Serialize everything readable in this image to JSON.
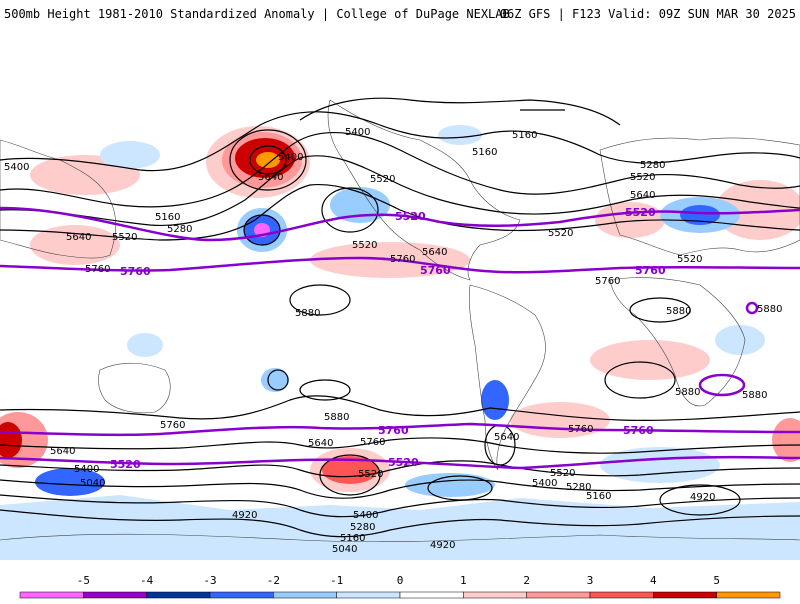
{
  "header": {
    "title": "500mb Height 1981-2010 Standardized Anomaly | College of DuPage NEXLAB",
    "run_info": "06Z GFS | F123 Valid: 09Z SUN MAR 30 2025"
  },
  "colorbar": {
    "ticks": [
      "-5",
      "-4",
      "-3",
      "-2",
      "-1",
      "0",
      "1",
      "2",
      "3",
      "4",
      "5"
    ],
    "colors": [
      "#ff66ff",
      "#9900cc",
      "#003399",
      "#3366ff",
      "#99ccff",
      "#cce6ff",
      "#ffffff",
      "#ffcccc",
      "#ff9999",
      "#ff5555",
      "#cc0000",
      "#ff9900"
    ]
  },
  "map": {
    "contour_labels": [
      "5400",
      "5280",
      "5160",
      "5400",
      "5400",
      "5280",
      "5160",
      "5640",
      "5640",
      "5520",
      "5160",
      "5280",
      "5640",
      "5520",
      "5520",
      "5520",
      "5520",
      "5520",
      "5520",
      "5640",
      "5760",
      "5760",
      "5760",
      "5760",
      "5760",
      "5880",
      "5880",
      "5880",
      "5880",
      "5880",
      "5880",
      "5760",
      "5760",
      "5760",
      "5760",
      "5640",
      "5640",
      "5640",
      "5520",
      "5520",
      "5520",
      "5520",
      "5400",
      "5400",
      "5280",
      "5160",
      "5040",
      "5400",
      "5280",
      "5160",
      "5040",
      "4920",
      "4920",
      "4920",
      "5520"
    ],
    "purple_line_labels": [
      "5520",
      "5520",
      "5760",
      "5760",
      "5760",
      "5760",
      "5760",
      "5520",
      "5520"
    ]
  }
}
